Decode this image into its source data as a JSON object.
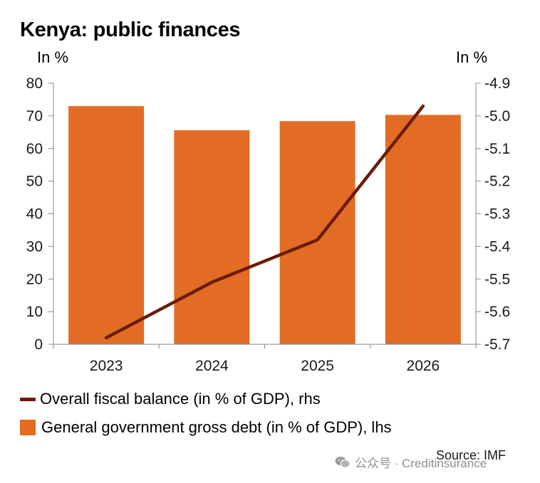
{
  "title": "Kenya: public finances",
  "unit_left": "In %",
  "unit_right": "In %",
  "colors": {
    "bar": "#e36c25",
    "line": "#6b1c05",
    "axis": "#888888"
  },
  "chart_data": {
    "type": "bar",
    "categories": [
      "2023",
      "2024",
      "2025",
      "2026"
    ],
    "series": [
      {
        "name": "General government gross debt (in % of GDP), lhs",
        "type": "bar",
        "axis": "left",
        "values": [
          73.0,
          65.6,
          68.4,
          70.3
        ]
      },
      {
        "name": "Overall fiscal balance (in % of GDP), rhs",
        "type": "line",
        "axis": "right",
        "values": [
          -5.68,
          -5.51,
          -5.38,
          -4.97
        ]
      }
    ],
    "y_left": {
      "lim": [
        0,
        80
      ],
      "ticks": [
        "0",
        "10",
        "20",
        "30",
        "40",
        "50",
        "60",
        "70",
        "80"
      ]
    },
    "y_right": {
      "lim": [
        -5.7,
        -4.9
      ],
      "ticks": [
        "-5.7",
        "-5.6",
        "-5.5",
        "-5.4",
        "-5.3",
        "-5.2",
        "-5.1",
        "-5.0",
        "-4.9"
      ]
    },
    "grid": false,
    "legend_position": "bottom"
  },
  "legend": {
    "line_label": "Overall fiscal balance (in % of GDP), rhs",
    "bar_label": "General government gross debt (in % of GDP), lhs"
  },
  "watermark": "公众号 · Creditinsurance",
  "source": "Source: IMF"
}
